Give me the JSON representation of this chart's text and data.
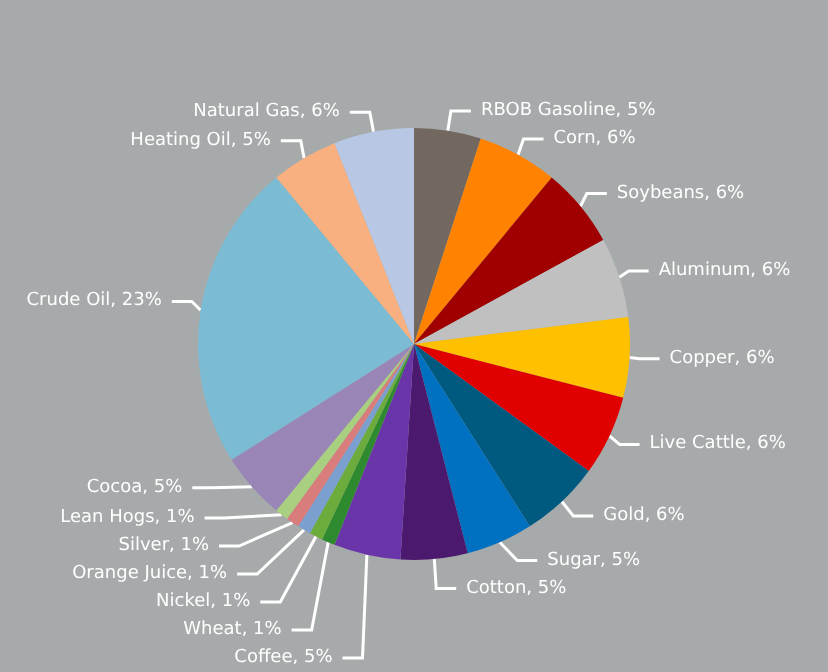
{
  "chart_data": {
    "type": "pie",
    "categories": [
      "RBOB Gasoline",
      "Corn",
      "Soybeans",
      "Aluminum",
      "Copper",
      "Live Cattle",
      "Gold",
      "Sugar",
      "Cotton",
      "Coffee",
      "Wheat",
      "Nickel",
      "Orange Juice",
      "Silver",
      "Lean Hogs",
      "Cocoa",
      "Crude Oil",
      "Heating Oil",
      "Natural Gas"
    ],
    "values": [
      5,
      6,
      6,
      6,
      6,
      6,
      6,
      5,
      5,
      5,
      1,
      1,
      1,
      1,
      1,
      5,
      23,
      5,
      6
    ],
    "value_labels": [
      "5%",
      "6%",
      "6%",
      "6%",
      "6%",
      "6%",
      "6%",
      "5%",
      "5%",
      "5%",
      "1%",
      "1%",
      "1%",
      "1%",
      "1%",
      "5%",
      "23%",
      "5%",
      "6%"
    ],
    "colors": [
      "#72685f",
      "#ff8200",
      "#a00000",
      "#c0c0c0",
      "#ffc000",
      "#e00000",
      "#005a80",
      "#0070c0",
      "#4b1a6e",
      "#6a35a8",
      "#2e8a2e",
      "#6cac3c",
      "#7ba0d0",
      "#d87c7c",
      "#a8d080",
      "#9a86b6",
      "#7bbcd4",
      "#f8b080",
      "#b8c8e4"
    ]
  }
}
